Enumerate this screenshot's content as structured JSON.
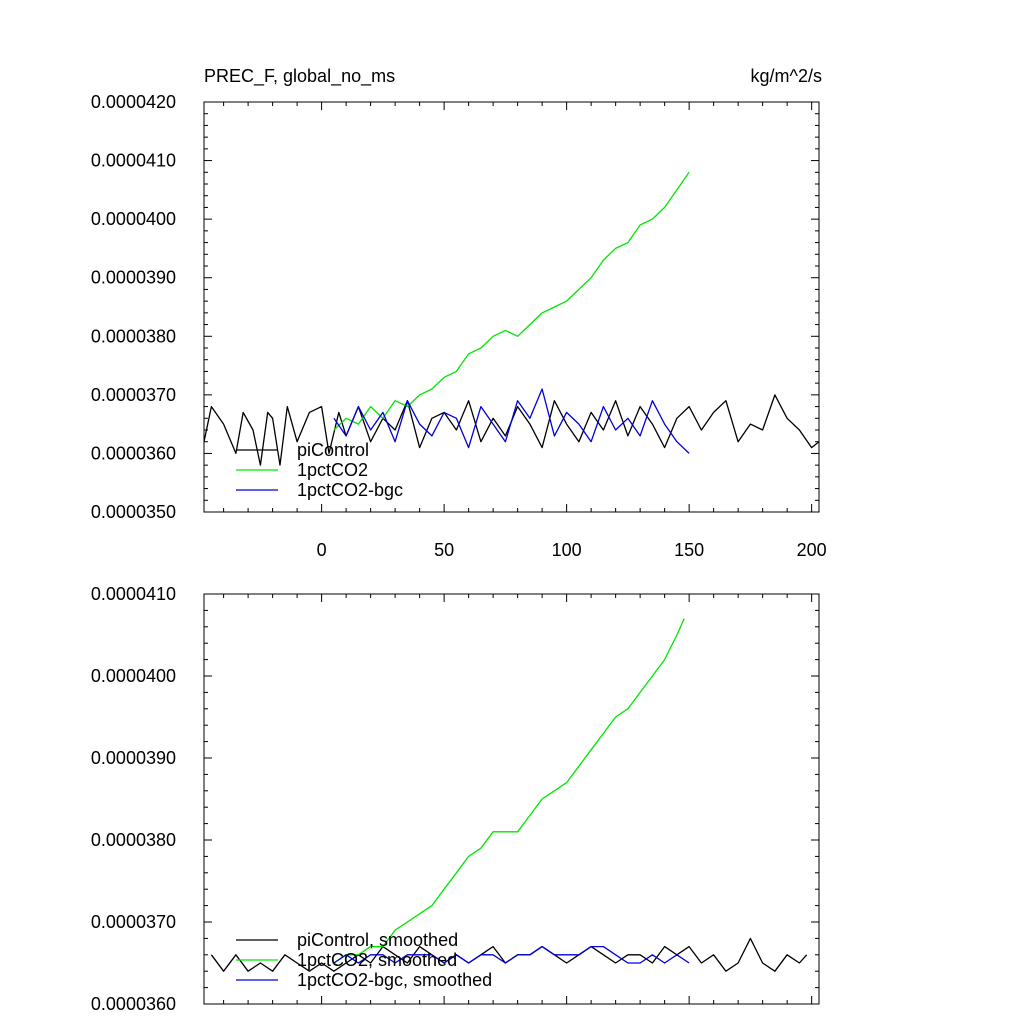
{
  "chart_data": [
    {
      "type": "line",
      "title": "PREC_F, global_no_ms",
      "units": "kg/m^2/s",
      "xlabel": "",
      "ylabel": "",
      "xlim": [
        -48,
        203
      ],
      "ylim": [
        3.5e-05,
        4.2e-05
      ],
      "x_ticks": [
        0,
        50,
        100,
        150,
        200
      ],
      "x_tick_labels": [
        "0",
        "50",
        "100",
        "150",
        "200"
      ],
      "y_ticks": [
        3.5e-05,
        3.6e-05,
        3.7e-05,
        3.8e-05,
        3.9e-05,
        4e-05,
        4.1e-05,
        4.2e-05
      ],
      "y_tick_labels": [
        "0.0000350",
        "0.0000360",
        "0.0000370",
        "0.0000380",
        "0.0000390",
        "0.0000400",
        "0.0000410",
        "0.0000420"
      ],
      "legend_position": "bottom-left",
      "series": [
        {
          "name": "piControl",
          "color": "#000000",
          "x": [
            -48,
            -45,
            -40,
            -35,
            -32,
            -28,
            -25,
            -22,
            -20,
            -17,
            -14,
            -10,
            -5,
            0,
            3,
            7,
            10,
            15,
            20,
            25,
            30,
            35,
            40,
            45,
            50,
            55,
            60,
            65,
            70,
            75,
            80,
            85,
            90,
            95,
            100,
            105,
            110,
            115,
            120,
            125,
            130,
            135,
            140,
            145,
            150,
            155,
            160,
            165,
            170,
            175,
            180,
            185,
            190,
            195,
            200,
            203
          ],
          "y": [
            3.62e-05,
            3.68e-05,
            3.65e-05,
            3.6e-05,
            3.67e-05,
            3.64e-05,
            3.58e-05,
            3.67e-05,
            3.66e-05,
            3.58e-05,
            3.68e-05,
            3.62e-05,
            3.67e-05,
            3.68e-05,
            3.6e-05,
            3.67e-05,
            3.63e-05,
            3.68e-05,
            3.62e-05,
            3.66e-05,
            3.64e-05,
            3.69e-05,
            3.61e-05,
            3.66e-05,
            3.67e-05,
            3.64e-05,
            3.69e-05,
            3.62e-05,
            3.66e-05,
            3.63e-05,
            3.68e-05,
            3.65e-05,
            3.61e-05,
            3.69e-05,
            3.65e-05,
            3.62e-05,
            3.67e-05,
            3.64e-05,
            3.69e-05,
            3.63e-05,
            3.68e-05,
            3.65e-05,
            3.61e-05,
            3.66e-05,
            3.68e-05,
            3.64e-05,
            3.67e-05,
            3.69e-05,
            3.62e-05,
            3.65e-05,
            3.64e-05,
            3.7e-05,
            3.66e-05,
            3.64e-05,
            3.61e-05,
            3.62e-05
          ]
        },
        {
          "name": "1pctCO2",
          "color": "#00e600",
          "x": [
            5,
            10,
            15,
            20,
            25,
            30,
            35,
            40,
            45,
            50,
            55,
            60,
            65,
            70,
            75,
            80,
            85,
            90,
            95,
            100,
            105,
            110,
            115,
            120,
            125,
            130,
            135,
            140,
            145,
            150
          ],
          "y": [
            3.64e-05,
            3.66e-05,
            3.65e-05,
            3.68e-05,
            3.66e-05,
            3.69e-05,
            3.68e-05,
            3.7e-05,
            3.71e-05,
            3.73e-05,
            3.74e-05,
            3.77e-05,
            3.78e-05,
            3.8e-05,
            3.81e-05,
            3.8e-05,
            3.82e-05,
            3.84e-05,
            3.85e-05,
            3.86e-05,
            3.88e-05,
            3.9e-05,
            3.93e-05,
            3.95e-05,
            3.96e-05,
            3.99e-05,
            4e-05,
            4.02e-05,
            4.05e-05,
            4.08e-05
          ]
        },
        {
          "name": "1pctCO2-bgc",
          "color": "#0000dd",
          "x": [
            5,
            10,
            15,
            20,
            25,
            30,
            35,
            40,
            45,
            50,
            55,
            60,
            65,
            70,
            75,
            80,
            85,
            90,
            95,
            100,
            105,
            110,
            115,
            120,
            125,
            130,
            135,
            140,
            145,
            150
          ],
          "y": [
            3.66e-05,
            3.63e-05,
            3.68e-05,
            3.64e-05,
            3.67e-05,
            3.62e-05,
            3.69e-05,
            3.65e-05,
            3.63e-05,
            3.67e-05,
            3.66e-05,
            3.61e-05,
            3.68e-05,
            3.65e-05,
            3.62e-05,
            3.69e-05,
            3.66e-05,
            3.71e-05,
            3.63e-05,
            3.67e-05,
            3.65e-05,
            3.62e-05,
            3.68e-05,
            3.64e-05,
            3.66e-05,
            3.63e-05,
            3.69e-05,
            3.65e-05,
            3.62e-05,
            3.6e-05
          ]
        }
      ]
    },
    {
      "type": "line",
      "title": "",
      "xlabel": "",
      "ylabel": "",
      "xlim": [
        -48,
        203
      ],
      "ylim": [
        3.6e-05,
        4.1e-05
      ],
      "x_ticks": [
        0,
        50,
        100,
        150,
        200
      ],
      "y_ticks": [
        3.6e-05,
        3.7e-05,
        3.8e-05,
        3.9e-05,
        4e-05,
        4.1e-05
      ],
      "y_tick_labels": [
        "0.0000360",
        "0.0000370",
        "0.0000380",
        "0.0000390",
        "0.0000400",
        "0.0000410"
      ],
      "legend_position": "bottom-left",
      "series": [
        {
          "name": "piControl, smoothed",
          "color": "#000000",
          "x": [
            -45,
            -40,
            -35,
            -30,
            -25,
            -20,
            -15,
            -10,
            -5,
            0,
            5,
            10,
            15,
            20,
            25,
            30,
            35,
            40,
            45,
            50,
            55,
            60,
            65,
            70,
            75,
            80,
            85,
            90,
            95,
            100,
            105,
            110,
            115,
            120,
            125,
            130,
            135,
            140,
            145,
            150,
            155,
            160,
            165,
            170,
            175,
            180,
            185,
            190,
            195,
            198
          ],
          "y": [
            3.66e-05,
            3.64e-05,
            3.66e-05,
            3.64e-05,
            3.65e-05,
            3.64e-05,
            3.66e-05,
            3.65e-05,
            3.64e-05,
            3.65e-05,
            3.64e-05,
            3.65e-05,
            3.66e-05,
            3.65e-05,
            3.67e-05,
            3.66e-05,
            3.65e-05,
            3.67e-05,
            3.66e-05,
            3.65e-05,
            3.66e-05,
            3.65e-05,
            3.66e-05,
            3.67e-05,
            3.65e-05,
            3.66e-05,
            3.66e-05,
            3.67e-05,
            3.66e-05,
            3.65e-05,
            3.66e-05,
            3.67e-05,
            3.66e-05,
            3.65e-05,
            3.66e-05,
            3.66e-05,
            3.65e-05,
            3.67e-05,
            3.66e-05,
            3.67e-05,
            3.65e-05,
            3.66e-05,
            3.64e-05,
            3.65e-05,
            3.68e-05,
            3.65e-05,
            3.64e-05,
            3.66e-05,
            3.65e-05,
            3.66e-05
          ]
        },
        {
          "name": "1pctCO2, smoothed",
          "color": "#00e600",
          "x": [
            5,
            10,
            15,
            20,
            25,
            30,
            35,
            40,
            45,
            50,
            55,
            60,
            65,
            70,
            75,
            80,
            85,
            90,
            95,
            100,
            105,
            110,
            115,
            120,
            125,
            130,
            135,
            140,
            145,
            148
          ],
          "y": [
            3.65e-05,
            3.66e-05,
            3.66e-05,
            3.67e-05,
            3.67e-05,
            3.69e-05,
            3.7e-05,
            3.71e-05,
            3.72e-05,
            3.74e-05,
            3.76e-05,
            3.78e-05,
            3.79e-05,
            3.81e-05,
            3.81e-05,
            3.81e-05,
            3.83e-05,
            3.85e-05,
            3.86e-05,
            3.87e-05,
            3.89e-05,
            3.91e-05,
            3.93e-05,
            3.95e-05,
            3.96e-05,
            3.98e-05,
            4e-05,
            4.02e-05,
            4.05e-05,
            4.07e-05
          ]
        },
        {
          "name": "1pctCO2-bgc, smoothed",
          "color": "#0000dd",
          "x": [
            5,
            10,
            15,
            20,
            25,
            30,
            35,
            40,
            45,
            50,
            55,
            60,
            65,
            70,
            75,
            80,
            85,
            90,
            95,
            100,
            105,
            110,
            115,
            120,
            125,
            130,
            135,
            140,
            145,
            150
          ],
          "y": [
            3.65e-05,
            3.66e-05,
            3.65e-05,
            3.66e-05,
            3.66e-05,
            3.65e-05,
            3.66e-05,
            3.66e-05,
            3.66e-05,
            3.65e-05,
            3.66e-05,
            3.65e-05,
            3.66e-05,
            3.66e-05,
            3.65e-05,
            3.66e-05,
            3.66e-05,
            3.67e-05,
            3.66e-05,
            3.66e-05,
            3.66e-05,
            3.67e-05,
            3.67e-05,
            3.66e-05,
            3.65e-05,
            3.65e-05,
            3.66e-05,
            3.65e-05,
            3.66e-05,
            3.65e-05
          ]
        }
      ]
    }
  ]
}
